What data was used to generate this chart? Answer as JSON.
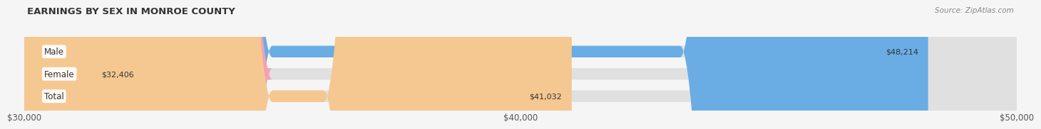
{
  "title": "EARNINGS BY SEX IN MONROE COUNTY",
  "source": "Source: ZipAtlas.com",
  "categories": [
    "Male",
    "Female",
    "Total"
  ],
  "values": [
    48214,
    32406,
    41032
  ],
  "bar_colors": [
    "#6aade4",
    "#f4a0b5",
    "#f5c891"
  ],
  "xmin": 30000,
  "xmax": 50000,
  "xticks": [
    30000,
    40000,
    50000
  ],
  "xtick_labels": [
    "$30,000",
    "$40,000",
    "$50,000"
  ],
  "label_values": [
    "$48,214",
    "$32,406",
    "$41,032"
  ],
  "bg_color": "#f5f5f5",
  "bar_bg_color": "#e0e0e0",
  "title_fontsize": 9.5,
  "tick_fontsize": 8.5,
  "bar_label_fontsize": 8,
  "category_fontsize": 8.5
}
